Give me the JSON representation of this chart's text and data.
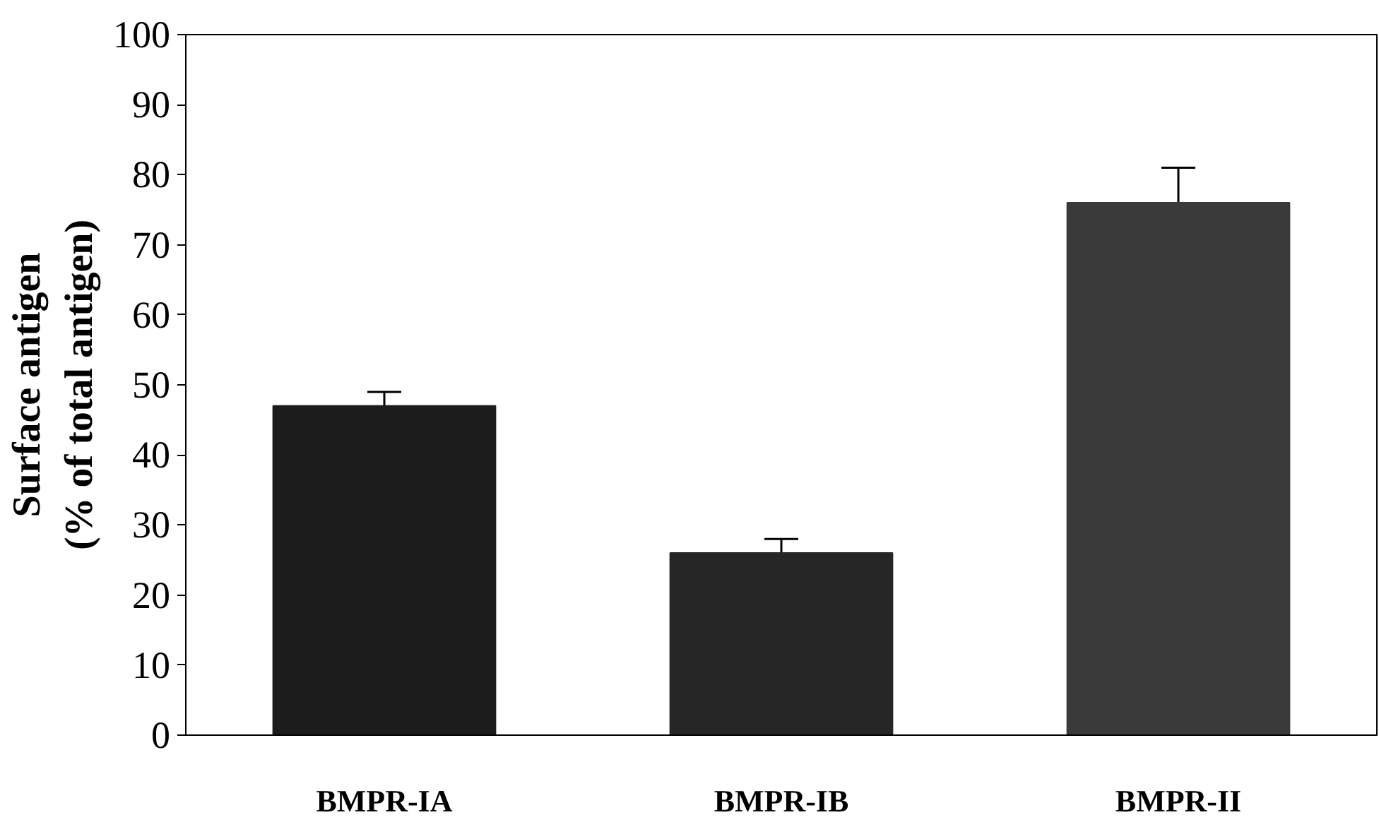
{
  "chart_data": {
    "type": "bar",
    "ylabel": "Surface antigen\n(% of total antigen)",
    "categories": [
      "BMPR-IA",
      "BMPR-IB",
      "BMPR-II"
    ],
    "values": [
      47,
      26,
      76
    ],
    "colors": [
      "#1c1c1c",
      "#262626",
      "#3a3a3a"
    ],
    "errors": [
      [
        47,
        49
      ],
      [
        26,
        28
      ],
      [
        76,
        81
      ]
    ],
    "ylim": [
      0,
      100
    ],
    "yticks": [
      0,
      10,
      20,
      30,
      40,
      50,
      60,
      70,
      80,
      90,
      100
    ],
    "grid": false
  }
}
